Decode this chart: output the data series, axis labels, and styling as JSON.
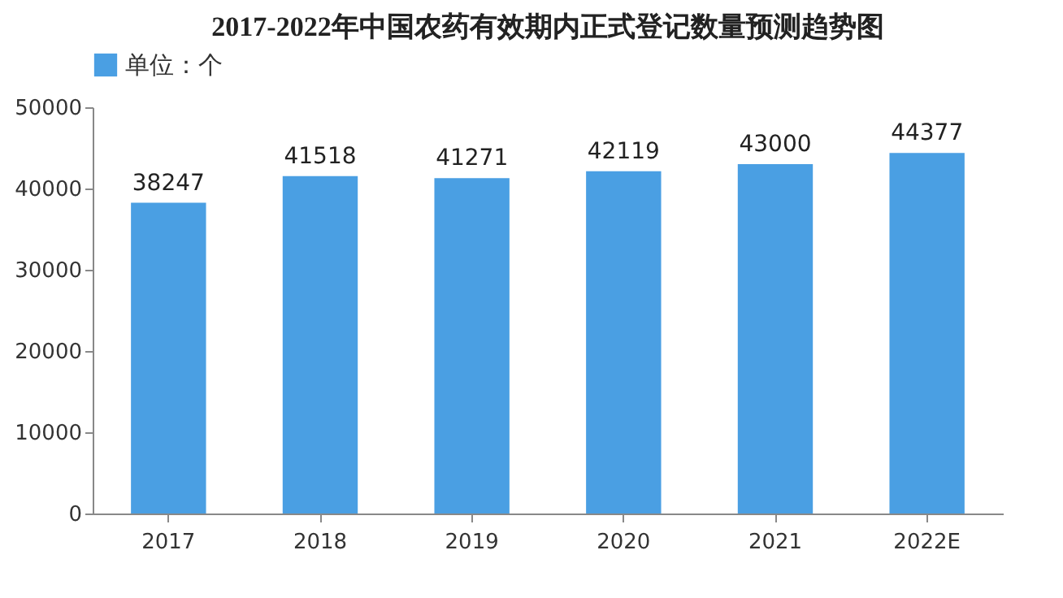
{
  "chart_data": {
    "type": "bar",
    "title": "2017-2022年中国农药有效期内正式登记数量预测趋势图",
    "categories": [
      "2017",
      "2018",
      "2019",
      "2020",
      "2021",
      "2022E"
    ],
    "series": [
      {
        "name": "单位：个",
        "color": "#4a9fe3",
        "values": [
          38247,
          41518,
          41271,
          42119,
          43000,
          44377
        ]
      }
    ],
    "ylim": [
      0,
      50000
    ],
    "yticks": [
      0,
      10000,
      20000,
      30000,
      40000,
      50000
    ],
    "grid": false,
    "legend": "top",
    "data_labels": true
  }
}
